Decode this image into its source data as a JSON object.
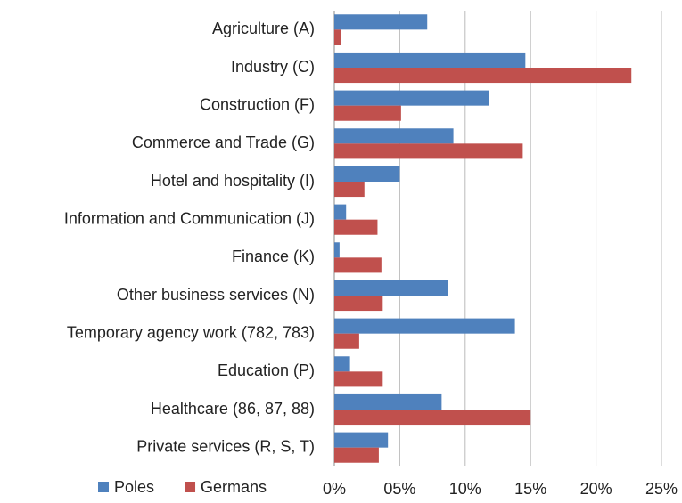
{
  "chart_data": {
    "type": "hbar",
    "categories": [
      "Agriculture (A)",
      "Industry (C)",
      "Construction (F)",
      "Commerce and Trade (G)",
      "Hotel and hospitality (I)",
      "Information and Communication (J)",
      "Finance (K)",
      "Other business services (N)",
      "Temporary agency work (782, 783)",
      "Education (P)",
      "Healthcare (86, 87, 88)",
      "Private services (R, S, T)"
    ],
    "series": [
      {
        "name": "Poles",
        "color": "#4f81bd",
        "values": [
          7.1,
          14.6,
          11.8,
          9.1,
          5.0,
          0.9,
          0.4,
          8.7,
          13.8,
          1.2,
          8.2,
          4.1
        ]
      },
      {
        "name": "Germans",
        "color": "#c0504d",
        "values": [
          0.5,
          22.7,
          5.1,
          14.4,
          2.3,
          3.3,
          3.6,
          3.7,
          1.9,
          3.7,
          15.0,
          3.4
        ]
      }
    ],
    "xlim": [
      0,
      25
    ],
    "xticks": [
      {
        "value": 0,
        "label": "0%"
      },
      {
        "value": 5,
        "label": "05%"
      },
      {
        "value": 10,
        "label": "10%"
      },
      {
        "value": 15,
        "label": "15%"
      },
      {
        "value": 20,
        "label": "20%"
      },
      {
        "value": 25,
        "label": "25%"
      }
    ],
    "grid": true,
    "legend": "bottom-left"
  }
}
